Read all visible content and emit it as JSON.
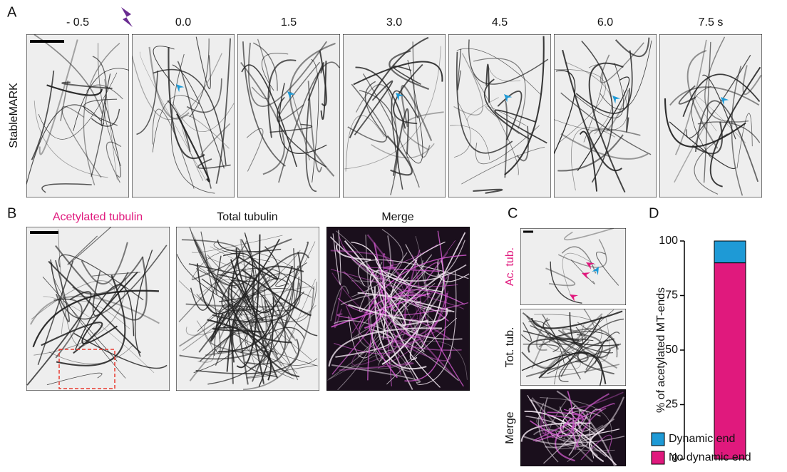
{
  "panel_a": {
    "label": "A",
    "row_label": "StableMARK",
    "timepoints": [
      "- 0.5",
      "0.0",
      "1.5",
      "3.0",
      "4.5",
      "6.0",
      "7.5 s"
    ]
  },
  "panel_b": {
    "label": "B",
    "titles": [
      "Acetylated tubulin",
      "Total tubulin",
      "Merge"
    ]
  },
  "panel_c": {
    "label": "C",
    "rows": [
      "Ac. tub.",
      "Tot. tub.",
      "Merge"
    ]
  },
  "chart_data": {
    "type": "stacked_bar",
    "panel_label": "D",
    "y_label": "% of acetylated MT-ends",
    "categories": [
      null
    ],
    "ylim": [
      0,
      100
    ],
    "yticks": [
      0,
      25,
      50,
      75,
      100
    ],
    "series": [
      {
        "name": "Dynamic end",
        "color": "#1e9ad6",
        "values": [
          10
        ]
      },
      {
        "name": "No dynamic end",
        "color": "#e0197d",
        "values": [
          90
        ]
      }
    ]
  }
}
